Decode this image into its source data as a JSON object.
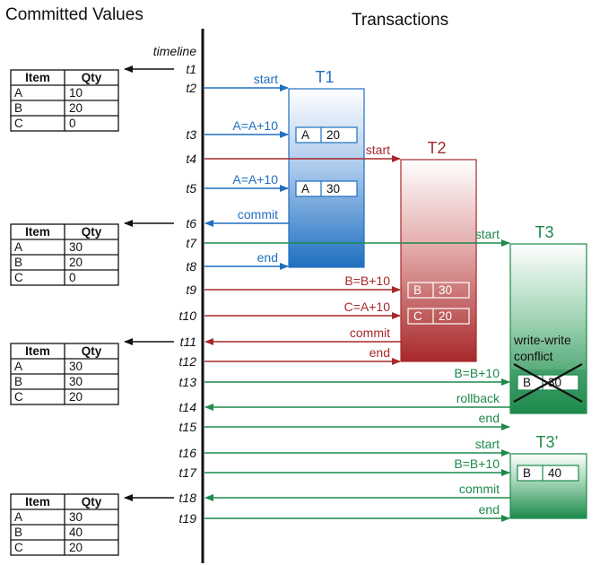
{
  "headings": {
    "committed": "Committed Values",
    "transactions": "Transactions"
  },
  "timeline_label": "timeline",
  "times": [
    "t1",
    "t2",
    "t3",
    "t4",
    "t5",
    "t6",
    "t7",
    "t8",
    "t9",
    "t10",
    "t11",
    "t12",
    "t13",
    "t14",
    "t15",
    "t16",
    "t17",
    "t18",
    "t19"
  ],
  "transactions": [
    {
      "id": "T1",
      "color": "#1f6fc0",
      "start_time": "t2",
      "end_time": "t8"
    },
    {
      "id": "T2",
      "color": "#a8282a",
      "start_time": "t4",
      "end_time": "t12"
    },
    {
      "id": "T3",
      "color": "#1d8a4c",
      "start_time": "t7",
      "end_time": "t15",
      "note": "write-write conflict"
    },
    {
      "id": "T3’",
      "color": "#1d8a4c",
      "start_time": "t16",
      "end_time": "t19"
    }
  ],
  "events": [
    {
      "time": "t2",
      "tx": "T1",
      "label": "start",
      "dir": "to_tx"
    },
    {
      "time": "t3",
      "tx": "T1",
      "label": "A=A+10",
      "dir": "to_tx"
    },
    {
      "time": "t4",
      "tx": "T2",
      "label": "start",
      "dir": "to_tx"
    },
    {
      "time": "t5",
      "tx": "T1",
      "label": "A=A+10",
      "dir": "to_tx"
    },
    {
      "time": "t6",
      "tx": "T1",
      "label": "commit",
      "dir": "to_timeline"
    },
    {
      "time": "t7",
      "tx": "T3",
      "label": "start",
      "dir": "to_tx"
    },
    {
      "time": "t8",
      "tx": "T1",
      "label": "end",
      "dir": "to_tx"
    },
    {
      "time": "t9",
      "tx": "T2",
      "label": "B=B+10",
      "dir": "to_tx"
    },
    {
      "time": "t10",
      "tx": "T2",
      "label": "C=A+10",
      "dir": "to_tx"
    },
    {
      "time": "t11",
      "tx": "T2",
      "label": "commit",
      "dir": "to_timeline"
    },
    {
      "time": "t12",
      "tx": "T2",
      "label": "end",
      "dir": "to_tx"
    },
    {
      "time": "t13",
      "tx": "T3",
      "label": "B=B+10",
      "dir": "to_tx"
    },
    {
      "time": "t14",
      "tx": "T3",
      "label": "rollback",
      "dir": "to_timeline"
    },
    {
      "time": "t15",
      "tx": "T3",
      "label": "end",
      "dir": "to_tx"
    },
    {
      "time": "t16",
      "tx": "T3’",
      "label": "start",
      "dir": "to_tx"
    },
    {
      "time": "t17",
      "tx": "T3’",
      "label": "B=B+10",
      "dir": "to_tx"
    },
    {
      "time": "t18",
      "tx": "T3’",
      "label": "commit",
      "dir": "to_timeline"
    },
    {
      "time": "t19",
      "tx": "T3’",
      "label": "end",
      "dir": "to_tx"
    }
  ],
  "workspace_cells": [
    {
      "tx": "T1",
      "time": "t3",
      "item": "A",
      "qty": "20"
    },
    {
      "tx": "T1",
      "time": "t5",
      "item": "A",
      "qty": "30"
    },
    {
      "tx": "T2",
      "time": "t9",
      "item": "B",
      "qty": "30"
    },
    {
      "tx": "T2",
      "time": "t10",
      "item": "C",
      "qty": "20"
    },
    {
      "tx": "T3",
      "time": "t13",
      "item": "B",
      "qty": "30",
      "crossed_out": true
    },
    {
      "tx": "T3’",
      "time": "t17",
      "item": "B",
      "qty": "40"
    }
  ],
  "committed_tables": [
    {
      "time": "t1",
      "columns": [
        "Item",
        "Qty"
      ],
      "rows": [
        [
          "A",
          "10"
        ],
        [
          "B",
          "20"
        ],
        [
          "C",
          "0"
        ]
      ]
    },
    {
      "time": "t6",
      "columns": [
        "Item",
        "Qty"
      ],
      "rows": [
        [
          "A",
          "30"
        ],
        [
          "B",
          "20"
        ],
        [
          "C",
          "0"
        ]
      ]
    },
    {
      "time": "t11",
      "columns": [
        "Item",
        "Qty"
      ],
      "rows": [
        [
          "A",
          "30"
        ],
        [
          "B",
          "30"
        ],
        [
          "C",
          "20"
        ]
      ]
    },
    {
      "time": "t18",
      "columns": [
        "Item",
        "Qty"
      ],
      "rows": [
        [
          "A",
          "30"
        ],
        [
          "B",
          "40"
        ],
        [
          "C",
          "20"
        ]
      ]
    }
  ]
}
